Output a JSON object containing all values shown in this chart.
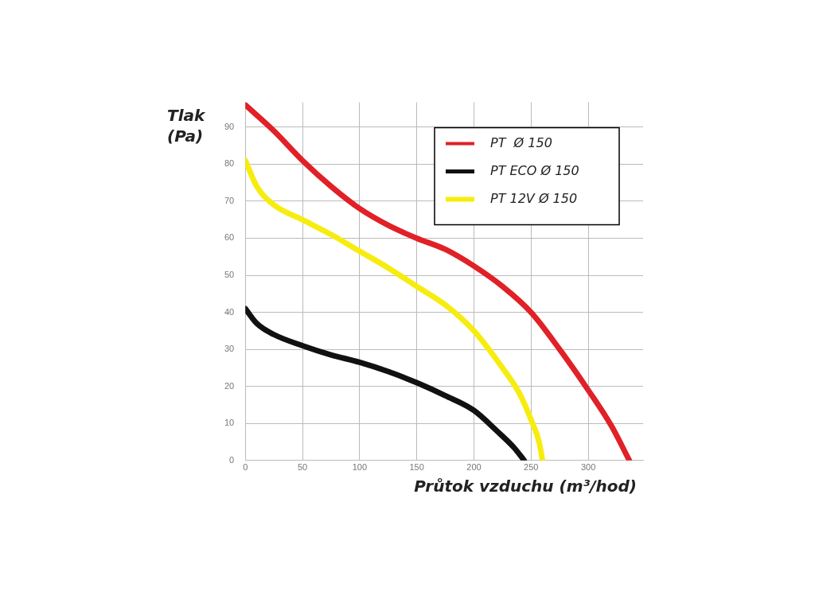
{
  "chart_data": {
    "type": "line",
    "xlabel": "Průtok vzduchu (m³/hod)",
    "ylabel": "Tlak (Pa)",
    "xlim": [
      0,
      348
    ],
    "xticks": [
      0,
      50,
      100,
      150,
      200,
      250,
      300
    ],
    "ylim": [
      0,
      96.7
    ],
    "yticks": [
      0,
      10,
      20,
      30,
      40,
      50,
      60,
      70,
      80,
      90
    ],
    "grid": true,
    "legend": "top right",
    "marker": "none",
    "line_style": "solid",
    "series": [
      {
        "name": "PT  Ø 150",
        "color": "#e02127",
        "x": [
          0,
          25,
          50,
          75,
          100,
          125,
          150,
          175,
          200,
          225,
          250,
          275,
          300,
          320,
          336
        ],
        "values": [
          96,
          89,
          81,
          74,
          68,
          63.5,
          60,
          57,
          52.5,
          47,
          40,
          30,
          19,
          9.5,
          0
        ]
      },
      {
        "name": "PT ECO Ø 150",
        "color": "#111111",
        "x": [
          0,
          10,
          25,
          50,
          75,
          100,
          125,
          150,
          175,
          200,
          220,
          235,
          244
        ],
        "values": [
          41,
          37,
          34,
          31,
          28.5,
          26.5,
          24,
          21,
          17.5,
          13.5,
          8,
          3.5,
          0
        ]
      },
      {
        "name": "PT 12V Ø 150",
        "color": "#f7ec0f",
        "x": [
          0,
          10,
          25,
          50,
          75,
          100,
          125,
          150,
          175,
          200,
          225,
          240,
          250,
          257,
          260
        ],
        "values": [
          81,
          74,
          69,
          65,
          61,
          56.5,
          52,
          47,
          42,
          35,
          25,
          18,
          11,
          5,
          0
        ]
      }
    ]
  }
}
